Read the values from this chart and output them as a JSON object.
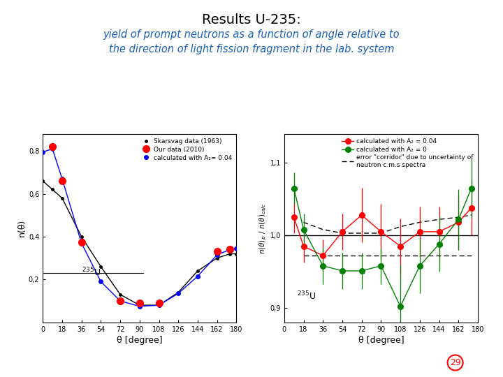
{
  "title": "Results U-235:",
  "subtitle": "yield of prompt neutrons as a function of angle relative to\nthe direction of light fission fragment in the lab. system",
  "title_color": "#000000",
  "subtitle_color": "#1a5fb4",
  "background_color": "#ffffff",
  "left_plot": {
    "skarsvag_x": [
      0,
      9,
      18,
      36,
      54,
      72,
      90,
      108,
      126,
      144,
      162,
      174,
      180
    ],
    "skarsvag_y": [
      0.66,
      0.62,
      0.58,
      0.4,
      0.26,
      0.13,
      0.08,
      0.08,
      0.14,
      0.24,
      0.3,
      0.32,
      0.32
    ],
    "ourdata_x": [
      9,
      18,
      36,
      72,
      90,
      108,
      162,
      174
    ],
    "ourdata_y": [
      0.82,
      0.66,
      0.375,
      0.1,
      0.09,
      0.09,
      0.33,
      0.34
    ],
    "calc_x": [
      0,
      9,
      18,
      36,
      54,
      72,
      90,
      108,
      126,
      144,
      162,
      174,
      180
    ],
    "calc_y": [
      0.795,
      0.81,
      0.67,
      0.37,
      0.19,
      0.1,
      0.075,
      0.08,
      0.135,
      0.215,
      0.315,
      0.34,
      0.345
    ],
    "ylabel": "n(θ)",
    "xlabel": "θ [degree]",
    "ylim": [
      0.0,
      0.88
    ],
    "yticks": [
      0.2,
      0.4,
      0.6,
      0.8
    ],
    "ytick_labels": [
      "0,2",
      "0,4",
      "0,6",
      "0,8"
    ],
    "xticks": [
      0,
      18,
      36,
      54,
      72,
      90,
      108,
      126,
      144,
      162,
      180
    ],
    "legend_labels": [
      "Skarsvag data (1963)",
      "Our data (2010)",
      "calculated with A₂= 0.04"
    ],
    "hline_y": 0.23,
    "hline_xmax": 0.52
  },
  "right_plot": {
    "red_x": [
      9,
      18,
      36,
      54,
      72,
      90,
      108,
      126,
      144,
      162,
      174
    ],
    "red_y": [
      1.025,
      0.985,
      0.972,
      1.005,
      1.028,
      1.005,
      0.985,
      1.005,
      1.005,
      1.018,
      1.038
    ],
    "red_yerr": [
      0.022,
      0.022,
      0.022,
      0.025,
      0.038,
      0.038,
      0.038,
      0.035,
      0.035,
      0.038,
      0.038
    ],
    "green_x": [
      9,
      18,
      36,
      54,
      72,
      90,
      108,
      126,
      144,
      162,
      174
    ],
    "green_y": [
      1.065,
      1.008,
      0.958,
      0.951,
      0.951,
      0.958,
      0.902,
      0.958,
      0.988,
      1.022,
      1.065
    ],
    "green_yerr": [
      0.022,
      0.022,
      0.025,
      0.025,
      0.025,
      0.025,
      0.058,
      0.038,
      0.038,
      0.042,
      0.042
    ],
    "dashed_upper_x": [
      18,
      36,
      54,
      72,
      90,
      108,
      126,
      144,
      162,
      174
    ],
    "dashed_upper_y": [
      1.018,
      1.008,
      1.003,
      1.003,
      1.003,
      1.012,
      1.018,
      1.022,
      1.025,
      1.028
    ],
    "dashed_lower_x": [
      18,
      36,
      54,
      72,
      90,
      108,
      126,
      144,
      162,
      174
    ],
    "dashed_lower_y": [
      0.972,
      0.972,
      0.972,
      0.972,
      0.972,
      0.972,
      0.972,
      0.972,
      0.972,
      0.972
    ],
    "xlabel": "θ [degree]",
    "ylim": [
      0.88,
      1.14
    ],
    "yticks": [
      0.9,
      1.0,
      1.1
    ],
    "ytick_labels": [
      "0,9",
      "1,0",
      "1,1"
    ],
    "xticks": [
      0,
      18,
      36,
      54,
      72,
      90,
      108,
      126,
      144,
      162,
      180
    ],
    "legend_labels": [
      "calculated with A₂ = 0.04",
      "calculated with A₂ = 0",
      "error \"corridor\" due to uncertainty of\nneutron c.m.s spectra"
    ]
  },
  "page_number": "29"
}
